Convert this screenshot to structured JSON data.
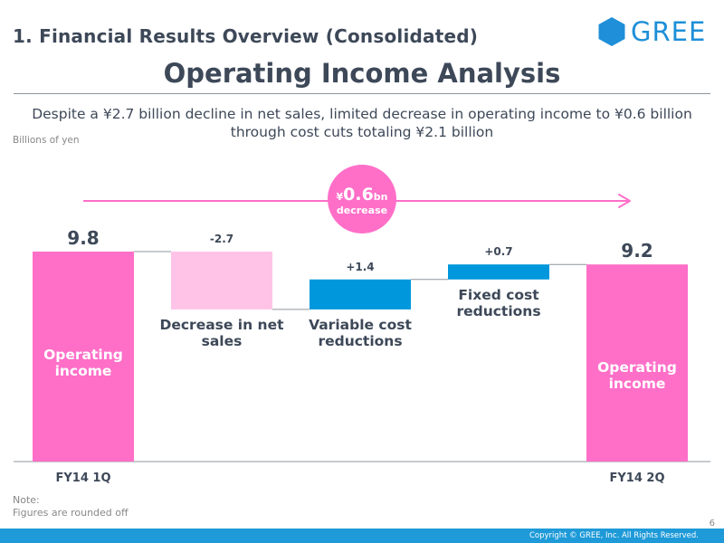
{
  "header": {
    "section_title": "1. Financial Results Overview (Consolidated)",
    "brand": "GREE",
    "logo_icon": "hexagon-logo-icon",
    "brand_color": "#1e8fd8"
  },
  "main_title": "Operating Income Analysis",
  "subtitle_line1": "Despite a ¥2.7 billion decline in net sales, limited decrease in operating income to ¥0.6 billion",
  "subtitle_line2": "through cost cuts totaling ¥2.1 billion",
  "unit_label": "Billions of yen",
  "chart_data": {
    "type": "waterfall",
    "title": "Operating Income Analysis",
    "unit": "Billions of yen",
    "ylim": [
      0,
      9.8
    ],
    "steps": [
      {
        "kind": "total",
        "label": "Operating income",
        "value": 9.8,
        "value_label": "9.8",
        "axis_label": "FY14 1Q",
        "color": "#ff6fc8"
      },
      {
        "kind": "delta",
        "label": "Decrease in net sales",
        "value": -2.7,
        "value_label": "-2.7",
        "axis_label": "",
        "color": "#ffc3e8"
      },
      {
        "kind": "delta",
        "label": "Variable cost reductions",
        "value": 1.4,
        "value_label": "+1.4",
        "axis_label": "",
        "color": "#0097dc"
      },
      {
        "kind": "delta",
        "label": "Fixed cost reductions",
        "value": 0.7,
        "value_label": "+0.7",
        "axis_label": "",
        "color": "#0097dc"
      },
      {
        "kind": "total",
        "label": "Operating income",
        "value": 9.2,
        "value_label": "9.2",
        "axis_label": "FY14 2Q",
        "color": "#ff6fc8"
      }
    ],
    "annotation": {
      "prefix": "¥",
      "amount": "0.6",
      "suffix": "bn",
      "text": "decrease",
      "color": "#ff6fc8"
    }
  },
  "note": {
    "title": "Note:",
    "text": "Figures are rounded off"
  },
  "page_number": "6",
  "footer": {
    "copyright": "Copyright © GREE, Inc. All Rights Reserved.",
    "color": "#1e9ad8"
  }
}
